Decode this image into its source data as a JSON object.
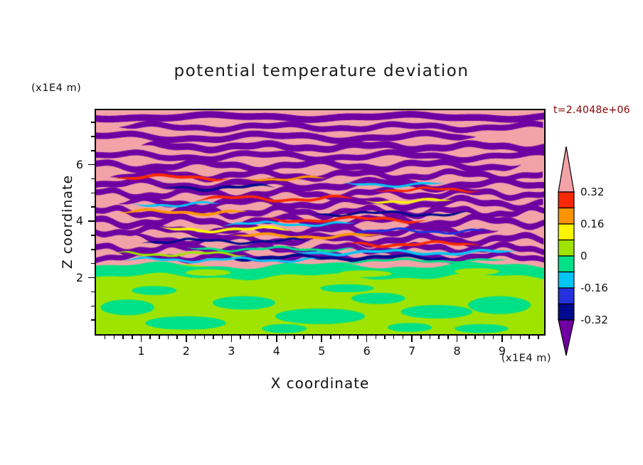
{
  "chart": {
    "title": "potential temperature deviation",
    "annotation": "t=2.4048e+06",
    "annotation_color": "#8b0000",
    "x_axis": {
      "label": "X coordinate",
      "unit": "(x1E4 m)",
      "ticks": [
        1,
        2,
        3,
        4,
        5,
        6,
        7,
        8,
        9
      ],
      "range": [
        0,
        9.93
      ],
      "minor_step": 0.2
    },
    "z_axis": {
      "label": "Z coordinate",
      "unit": "(x1E4 m)",
      "ticks": [
        2,
        4,
        6
      ],
      "range": [
        0,
        7.93
      ],
      "minor_step": 0.5
    },
    "colorbar": {
      "levels": [
        "0.32",
        "0.16",
        "0",
        "-0.16",
        "-0.32"
      ],
      "segment_colors": [
        "#fa2800",
        "#ff9400",
        "#fcf500",
        "#9fe400",
        "#00e187",
        "#00c6f5",
        "#2431dd",
        "#000a8c"
      ],
      "arrow_top_color": "#f2a3a8",
      "arrow_bottom_color": "#6f00a1"
    }
  },
  "chart_data": {
    "type": "heatmap",
    "title": "potential temperature deviation",
    "xlabel": "X coordinate",
    "ylabel": "Z coordinate",
    "x_units": "x1E4 m",
    "z_units": "x1E4 m",
    "xlim": [
      0,
      9.93
    ],
    "ylim": [
      0,
      7.93
    ],
    "time": "t=2.4048e+06",
    "contour_levels": [
      -0.32,
      -0.24,
      -0.16,
      -0.08,
      0,
      0.08,
      0.16,
      0.24,
      0.32
    ],
    "level_step": 0.08,
    "level_colors_low_to_high": [
      "#6f00a1",
      "#000a8c",
      "#2431dd",
      "#00c6f5",
      "#00e187",
      "#9fe400",
      "#fcf500",
      "#ff9400",
      "#fa2800",
      "#f2a3a8"
    ],
    "structure_summary": "Upper region (z>2, x1E4 m) shows alternating horizontal pink (>0.32) and dark purple (<-0.32) wavy stripes with thin red, orange, yellow, cyan, blue and navy streaks concentrated between z=3 and z=5; lower boundary layer (z<2) is near zero: yellow-green (0..0.08) with spring-green (-0.08..0) patches.",
    "palette": {
      "pink": "#f2a3a8",
      "purple": "#6f00a1",
      "red": "#fa2800",
      "orange": "#ff9400",
      "yellow": "#fcf500",
      "greenyellow": "#9fe400",
      "springgreen": "#00e187",
      "cyan": "#00c6f5",
      "blue": "#2431dd",
      "navy": "#000a8c"
    },
    "field": {
      "purple_stripes": [
        [
          0.03,
          0.03,
          0.008,
          260,
          0.5,
          0.0,
          1.0
        ],
        [
          0.075,
          0.026,
          0.01,
          180,
          2.1,
          0.05,
          1.0
        ],
        [
          0.12,
          0.028,
          0.012,
          220,
          4.0,
          0.0,
          0.85
        ],
        [
          0.163,
          0.03,
          0.01,
          150,
          1.2,
          0.1,
          1.0
        ],
        [
          0.205,
          0.026,
          0.012,
          190,
          3.3,
          0.0,
          1.0
        ],
        [
          0.247,
          0.028,
          0.014,
          160,
          5.1,
          0.0,
          0.95
        ],
        [
          0.29,
          0.026,
          0.013,
          140,
          0.8,
          0.03,
          1.0
        ],
        [
          0.332,
          0.028,
          0.015,
          170,
          2.6,
          0.0,
          1.0
        ],
        [
          0.373,
          0.026,
          0.014,
          130,
          4.4,
          0.0,
          1.0
        ],
        [
          0.415,
          0.028,
          0.016,
          150,
          1.9,
          0.05,
          1.0
        ],
        [
          0.455,
          0.026,
          0.015,
          120,
          3.7,
          0.0,
          1.0
        ],
        [
          0.497,
          0.028,
          0.016,
          140,
          5.5,
          0.0,
          1.0
        ],
        [
          0.538,
          0.026,
          0.014,
          125,
          0.3,
          0.0,
          0.9
        ],
        [
          0.578,
          0.028,
          0.015,
          135,
          2.2,
          0.08,
          1.0
        ],
        [
          0.618,
          0.026,
          0.013,
          115,
          4.8,
          0.0,
          1.0
        ],
        [
          0.655,
          0.024,
          0.012,
          125,
          1.5,
          0.0,
          1.0
        ]
      ],
      "streaks": [
        [
          0.3,
          0.013,
          0.008,
          150,
          0.7,
          0.04,
          0.3,
          "red"
        ],
        [
          0.305,
          0.01,
          0.007,
          130,
          2.3,
          0.33,
          0.52,
          "orange"
        ],
        [
          0.33,
          0.01,
          0.008,
          160,
          4.1,
          0.55,
          0.78,
          "cyan"
        ],
        [
          0.345,
          0.012,
          0.009,
          140,
          1.0,
          0.15,
          0.4,
          "navy"
        ],
        [
          0.355,
          0.01,
          0.007,
          120,
          5.2,
          0.62,
          0.86,
          "red"
        ],
        [
          0.395,
          0.012,
          0.009,
          150,
          2.8,
          0.22,
          0.58,
          "red"
        ],
        [
          0.405,
          0.01,
          0.007,
          130,
          0.4,
          0.6,
          0.8,
          "yellow"
        ],
        [
          0.42,
          0.01,
          0.008,
          140,
          3.6,
          0.08,
          0.28,
          "cyan"
        ],
        [
          0.455,
          0.012,
          0.008,
          150,
          1.7,
          0.05,
          0.34,
          "orange"
        ],
        [
          0.462,
          0.01,
          0.008,
          135,
          4.9,
          0.48,
          0.84,
          "navy"
        ],
        [
          0.488,
          0.012,
          0.009,
          155,
          2.2,
          0.38,
          0.74,
          "red"
        ],
        [
          0.508,
          0.01,
          0.007,
          125,
          5.6,
          0.28,
          0.58,
          "cyan"
        ],
        [
          0.532,
          0.012,
          0.008,
          145,
          0.9,
          0.14,
          0.44,
          "yellow"
        ],
        [
          0.54,
          0.01,
          0.008,
          130,
          3.1,
          0.55,
          0.88,
          "blue"
        ],
        [
          0.562,
          0.012,
          0.008,
          150,
          1.4,
          0.3,
          0.64,
          "orange"
        ],
        [
          0.585,
          0.01,
          0.008,
          135,
          4.4,
          0.1,
          0.48,
          "navy"
        ],
        [
          0.598,
          0.012,
          0.008,
          140,
          2.0,
          0.56,
          0.86,
          "red"
        ],
        [
          0.62,
          0.01,
          0.007,
          130,
          5.0,
          0.2,
          0.58,
          "springgreen"
        ],
        [
          0.635,
          0.012,
          0.008,
          150,
          0.2,
          0.44,
          0.94,
          "cyan"
        ],
        [
          0.642,
          0.01,
          0.007,
          120,
          2.9,
          0.04,
          0.34,
          "greenyellow"
        ],
        [
          0.658,
          0.013,
          0.008,
          140,
          4.6,
          0.28,
          0.8,
          "navy"
        ],
        [
          0.668,
          0.01,
          0.007,
          125,
          1.1,
          0.06,
          0.5,
          "cyan"
        ],
        [
          0.672,
          0.01,
          0.006,
          135,
          3.8,
          0.55,
          0.92,
          "springgreen"
        ]
      ],
      "bottom": {
        "top": 0.7,
        "amp": 0.012,
        "wl": 210,
        "ph": 1.3,
        "band": [
          0.718,
          0.05,
          0.012,
          230,
          2.5,
          0.0,
          1.0
        ]
      },
      "blobs": [
        [
          0.07,
          0.88,
          0.06,
          0.035,
          "springgreen"
        ],
        [
          0.2,
          0.95,
          0.09,
          0.03,
          "springgreen"
        ],
        [
          0.33,
          0.86,
          0.07,
          0.03,
          "springgreen"
        ],
        [
          0.5,
          0.92,
          0.1,
          0.035,
          "springgreen"
        ],
        [
          0.63,
          0.84,
          0.06,
          0.025,
          "springgreen"
        ],
        [
          0.76,
          0.9,
          0.08,
          0.03,
          "springgreen"
        ],
        [
          0.9,
          0.87,
          0.07,
          0.04,
          "springgreen"
        ],
        [
          0.86,
          0.975,
          0.06,
          0.02,
          "springgreen"
        ],
        [
          0.42,
          0.975,
          0.05,
          0.02,
          "springgreen"
        ],
        [
          0.13,
          0.805,
          0.05,
          0.02,
          "springgreen"
        ],
        [
          0.56,
          0.795,
          0.06,
          0.018,
          "springgreen"
        ],
        [
          0.7,
          0.97,
          0.05,
          0.02,
          "springgreen"
        ],
        [
          0.25,
          0.725,
          0.05,
          0.015,
          "greenyellow"
        ],
        [
          0.6,
          0.73,
          0.06,
          0.015,
          "greenyellow"
        ],
        [
          0.85,
          0.72,
          0.05,
          0.015,
          "greenyellow"
        ]
      ]
    }
  }
}
